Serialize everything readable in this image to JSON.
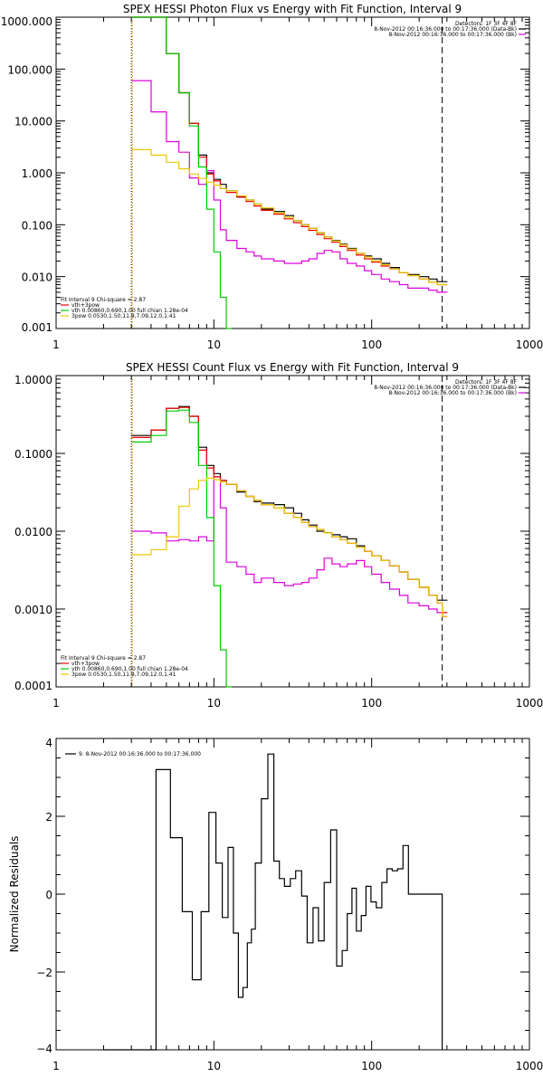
{
  "chart_data": [
    {
      "type": "line",
      "title": "SPEX HESSI Photon Flux vs Energy with Fit Function, Interval 9",
      "xlabel": "",
      "ylabel": "",
      "x_scale": "log",
      "y_scale": "log",
      "xlim": [
        1,
        1000
      ],
      "ylim": [
        0.001,
        1000
      ],
      "x_tick_labels": [
        "1",
        "10",
        "100",
        "1000"
      ],
      "y_tick_labels": [
        "1000.000",
        "100.000",
        "10.000",
        "1.000",
        "0.100",
        "0.010",
        "0.001"
      ],
      "y_tick_values": [
        1000,
        100,
        10,
        1,
        0.1,
        0.01,
        0.001
      ],
      "vlines": [
        3,
        280
      ],
      "legend_top_right": [
        "Detectors: 1F 3F 4F 8F",
        "8-Nov-2012 00:16:36.000 to 00:17:36.000 (Data-Bk)",
        "8-Nov-2012 00:16:36.000 to 00:17:36.000 (Bk)"
      ],
      "legend_top_right_colors": [
        "",
        "#000000",
        "#dd00dd"
      ],
      "legend_bottom_left": [
        "Fit Interval 9   Chi-square = 2.87",
        "vth+3pow",
        "vth 0.00860,0.690,1.00  full chian 1.28e-04",
        "3pow 0.0530,1.50,11.9,7.09,12.0,1.41"
      ],
      "legend_bottom_left_colors": [
        "",
        "#ee0000",
        "#00cc00",
        "#e8c800"
      ],
      "series": [
        {
          "name": "Data-Bk",
          "color": "#000000",
          "step": true,
          "x": [
            3,
            4,
            5,
            6,
            7,
            8,
            9,
            10,
            11,
            12,
            14,
            16,
            18,
            20,
            24,
            28,
            32,
            36,
            40,
            45,
            50,
            56,
            63,
            70,
            80,
            90,
            100,
            115,
            130,
            150,
            170,
            200,
            230,
            260,
            280
          ],
          "y": [
            1000,
            1000,
            200,
            35,
            9,
            2.2,
            1.0,
            0.75,
            0.6,
            0.45,
            0.35,
            0.3,
            0.25,
            0.2,
            0.18,
            0.15,
            0.12,
            0.1,
            0.085,
            0.07,
            0.058,
            0.05,
            0.042,
            0.035,
            0.028,
            0.025,
            0.022,
            0.018,
            0.015,
            0.012,
            0.011,
            0.01,
            0.009,
            0.008,
            0.008
          ]
        },
        {
          "name": "Bk",
          "color": "#dd00dd",
          "step": true,
          "x": [
            3,
            4,
            5,
            6,
            7,
            8,
            9,
            10,
            11,
            12,
            14,
            16,
            18,
            20,
            24,
            28,
            32,
            36,
            40,
            45,
            50,
            56,
            63,
            70,
            80,
            90,
            100,
            115,
            130,
            150,
            170,
            200,
            230,
            260,
            280
          ],
          "y": [
            60,
            15,
            4,
            2.5,
            0.8,
            0.6,
            1.1,
            0.3,
            0.08,
            0.05,
            0.035,
            0.03,
            0.025,
            0.022,
            0.02,
            0.018,
            0.018,
            0.02,
            0.022,
            0.028,
            0.032,
            0.03,
            0.022,
            0.018,
            0.016,
            0.013,
            0.011,
            0.009,
            0.008,
            0.007,
            0.006,
            0.006,
            0.0055,
            0.005,
            0.005
          ]
        },
        {
          "name": "vth+3pow",
          "color": "#ee0000",
          "step": true,
          "x": [
            3,
            4,
            5,
            6,
            7,
            8,
            9,
            10,
            11,
            12,
            14,
            16,
            18,
            20,
            24,
            28,
            32,
            36,
            40,
            45,
            50,
            56,
            63,
            70,
            80,
            90,
            100,
            115,
            130,
            150,
            170,
            200,
            230,
            260,
            280
          ],
          "y": [
            1000,
            1000,
            200,
            35,
            9,
            2.0,
            0.95,
            0.7,
            0.5,
            0.42,
            0.34,
            0.28,
            0.23,
            0.19,
            0.16,
            0.13,
            0.11,
            0.092,
            0.078,
            0.065,
            0.054,
            0.046,
            0.038,
            0.032,
            0.026,
            0.022,
            0.019,
            0.016,
            0.014,
            0.012,
            0.0105,
            0.009,
            0.0078,
            0.007,
            0.007
          ]
        },
        {
          "name": "vth",
          "color": "#00cc00",
          "step": true,
          "x": [
            3,
            4,
            5,
            6,
            7,
            8,
            9,
            10,
            11,
            12
          ],
          "y": [
            1000,
            1000,
            200,
            35,
            8,
            1.3,
            0.2,
            0.03,
            0.004,
            0.0005
          ]
        },
        {
          "name": "3pow",
          "color": "#e8c800",
          "step": true,
          "x": [
            3,
            4,
            5,
            6,
            7,
            8,
            9,
            10,
            11,
            12,
            14,
            16,
            18,
            20,
            24,
            28,
            32,
            36,
            40,
            45,
            50,
            56,
            63,
            70,
            80,
            90,
            100,
            115,
            130,
            150,
            170,
            200,
            230,
            260,
            280
          ],
          "y": [
            2.8,
            2.2,
            1.6,
            1.2,
            0.95,
            0.78,
            0.66,
            0.58,
            0.5,
            0.45,
            0.36,
            0.3,
            0.25,
            0.21,
            0.17,
            0.14,
            0.12,
            0.1,
            0.085,
            0.07,
            0.058,
            0.049,
            0.041,
            0.034,
            0.028,
            0.024,
            0.02,
            0.017,
            0.014,
            0.012,
            0.0105,
            0.009,
            0.0078,
            0.007,
            0.007
          ]
        }
      ]
    },
    {
      "type": "line",
      "title": "SPEX HESSI Count Flux vs Energy with Fit Function, Interval 9",
      "xlabel": "",
      "ylabel": "",
      "x_scale": "log",
      "y_scale": "log",
      "xlim": [
        1,
        1000
      ],
      "ylim": [
        0.0001,
        1
      ],
      "x_tick_labels": [
        "1",
        "10",
        "100",
        "1000"
      ],
      "y_tick_labels": [
        "1.0000",
        "0.1000",
        "0.0100",
        "0.0010",
        "0.0001"
      ],
      "y_tick_values": [
        1,
        0.1,
        0.01,
        0.001,
        0.0001
      ],
      "vlines": [
        3,
        280
      ],
      "legend_top_right": [
        "Detectors: 1F 3F 4F 8F",
        "8-Nov-2012 00:16:36.000 to 00:17:36.000 (Data-Bk)",
        "8-Nov-2012 00:16:36.000 to 00:17:36.000 (Bk)"
      ],
      "legend_top_right_colors": [
        "",
        "#000000",
        "#dd00dd"
      ],
      "legend_bottom_left": [
        "Fit Interval 9   Chi-square = 2.87",
        "vth+3pow",
        "vth 0.00860,0.690,1.00  full chian 1.28e-04",
        "3pow 0.0530,1.50,11.9,7.09,12.0,1.41"
      ],
      "legend_bottom_left_colors": [
        "",
        "#ee0000",
        "#00cc00",
        "#e8c800"
      ],
      "series": [
        {
          "name": "Data-Bk",
          "color": "#000000",
          "step": true,
          "x": [
            3,
            4,
            5,
            6,
            7,
            8,
            9,
            10,
            11,
            12,
            14,
            16,
            18,
            20,
            24,
            28,
            32,
            36,
            40,
            45,
            50,
            56,
            63,
            70,
            80,
            90,
            100,
            115,
            130,
            150,
            170,
            200,
            230,
            260,
            280
          ],
          "y": [
            0.17,
            0.2,
            0.38,
            0.4,
            0.3,
            0.12,
            0.07,
            0.055,
            0.045,
            0.04,
            0.032,
            0.028,
            0.024,
            0.023,
            0.022,
            0.02,
            0.017,
            0.014,
            0.012,
            0.01,
            0.0095,
            0.009,
            0.0085,
            0.008,
            0.0065,
            0.0055,
            0.0048,
            0.0042,
            0.0036,
            0.003,
            0.0024,
            0.0019,
            0.0015,
            0.0013,
            0.0013
          ]
        },
        {
          "name": "Bk",
          "color": "#dd00dd",
          "step": true,
          "x": [
            3,
            4,
            5,
            6,
            7,
            8,
            9,
            10,
            11,
            12,
            14,
            16,
            18,
            20,
            24,
            28,
            32,
            36,
            40,
            45,
            50,
            56,
            63,
            70,
            80,
            90,
            100,
            115,
            130,
            150,
            170,
            200,
            230,
            260,
            280
          ],
          "y": [
            0.01,
            0.0095,
            0.0075,
            0.0078,
            0.0075,
            0.0085,
            0.0075,
            0.05,
            0.02,
            0.004,
            0.0035,
            0.0028,
            0.0022,
            0.0025,
            0.0022,
            0.002,
            0.0021,
            0.0022,
            0.0025,
            0.0032,
            0.0045,
            0.0038,
            0.0035,
            0.0038,
            0.0042,
            0.0035,
            0.0028,
            0.0022,
            0.0018,
            0.0015,
            0.0012,
            0.0011,
            0.001,
            0.0009,
            0.0008
          ]
        },
        {
          "name": "vth+3pow",
          "color": "#ee0000",
          "step": true,
          "x": [
            3,
            4,
            5,
            6,
            7,
            8,
            9,
            10,
            11,
            12,
            14,
            16,
            18,
            20,
            24,
            28,
            32,
            36,
            40,
            45,
            50,
            56,
            63,
            70,
            80,
            90,
            100,
            115,
            130,
            150,
            170,
            200,
            230,
            260,
            280
          ],
          "y": [
            0.16,
            0.2,
            0.38,
            0.39,
            0.3,
            0.11,
            0.065,
            0.05,
            0.045,
            0.04,
            0.033,
            0.028,
            0.025,
            0.022,
            0.02,
            0.017,
            0.015,
            0.013,
            0.0115,
            0.0105,
            0.0095,
            0.0085,
            0.0078,
            0.007,
            0.0062,
            0.0055,
            0.0048,
            0.0042,
            0.0036,
            0.003,
            0.0024,
            0.0019,
            0.0015,
            0.0012,
            0.0009
          ]
        },
        {
          "name": "vth",
          "color": "#00cc00",
          "step": true,
          "x": [
            3,
            4,
            5,
            6,
            7,
            8,
            9,
            10,
            11,
            12
          ],
          "y": [
            0.14,
            0.17,
            0.35,
            0.36,
            0.25,
            0.07,
            0.015,
            0.002,
            0.0003,
            2e-05
          ]
        },
        {
          "name": "3pow",
          "color": "#e8c800",
          "step": true,
          "x": [
            3,
            4,
            5,
            6,
            7,
            8,
            9,
            10,
            11,
            12,
            14,
            16,
            18,
            20,
            24,
            28,
            32,
            36,
            40,
            45,
            50,
            56,
            63,
            70,
            80,
            90,
            100,
            115,
            130,
            150,
            170,
            200,
            230,
            260,
            280
          ],
          "y": [
            0.005,
            0.0058,
            0.0085,
            0.021,
            0.035,
            0.045,
            0.048,
            0.046,
            0.043,
            0.04,
            0.033,
            0.028,
            0.025,
            0.022,
            0.02,
            0.017,
            0.015,
            0.013,
            0.0115,
            0.0105,
            0.0095,
            0.0085,
            0.0078,
            0.007,
            0.0062,
            0.0055,
            0.0048,
            0.0042,
            0.0036,
            0.003,
            0.0024,
            0.0019,
            0.0015,
            0.0012,
            0.0008
          ]
        }
      ]
    },
    {
      "type": "line",
      "title": "",
      "xlabel": "",
      "ylabel": "Normalized Residuals",
      "x_scale": "log",
      "y_scale": "linear",
      "xlim": [
        1,
        1000
      ],
      "ylim": [
        -4,
        4
      ],
      "x_tick_labels": [
        "1",
        "10",
        "100",
        "1000"
      ],
      "y_tick_labels": [
        "4",
        "2",
        "0",
        "−2",
        "−4"
      ],
      "y_tick_values": [
        4,
        2,
        0,
        -2,
        -4
      ],
      "legend": "9.  8-Nov-2012 00:16:36.000 to 00:17:36.000",
      "series": [
        {
          "name": "",
          "color": "#000000",
          "step": true,
          "x": [
            2.0,
            3.0,
            4.3,
            5.3,
            6.3,
            7.3,
            8.3,
            9.3,
            10.3,
            11.3,
            12.3,
            13.3,
            14.3,
            15.3,
            16.3,
            17.3,
            18.3,
            20.0,
            22.0,
            24.0,
            26.0,
            28.0,
            30.5,
            33.0,
            36.0,
            39.0,
            42.5,
            46.0,
            50.0,
            55.0,
            60.0,
            65.0,
            70.0,
            75.0,
            80.0,
            86.0,
            92.0,
            99.0,
            107.0,
            116.0,
            125.0,
            135.0,
            146.0,
            158.0,
            171.0,
            185.0,
            200.0,
            216.0,
            233.0,
            252.0
          ],
          "y": [
            -4.0,
            -4.0,
            3.2,
            1.45,
            -0.45,
            -2.2,
            -0.45,
            2.1,
            0.8,
            -0.6,
            1.2,
            -1.0,
            -2.65,
            -2.4,
            -1.25,
            -0.9,
            0.8,
            2.45,
            3.6,
            0.85,
            0.4,
            0.2,
            0.4,
            0.6,
            -0.05,
            -1.25,
            -0.35,
            -1.2,
            0.3,
            1.65,
            -1.85,
            -1.45,
            -0.5,
            0.15,
            -0.95,
            -0.55,
            0.2,
            -0.2,
            -0.35,
            0.3,
            0.65,
            0.6,
            0.65,
            1.25,
            0,
            0,
            0,
            0,
            0,
            0
          ],
          "end_x": 280
        }
      ]
    }
  ]
}
